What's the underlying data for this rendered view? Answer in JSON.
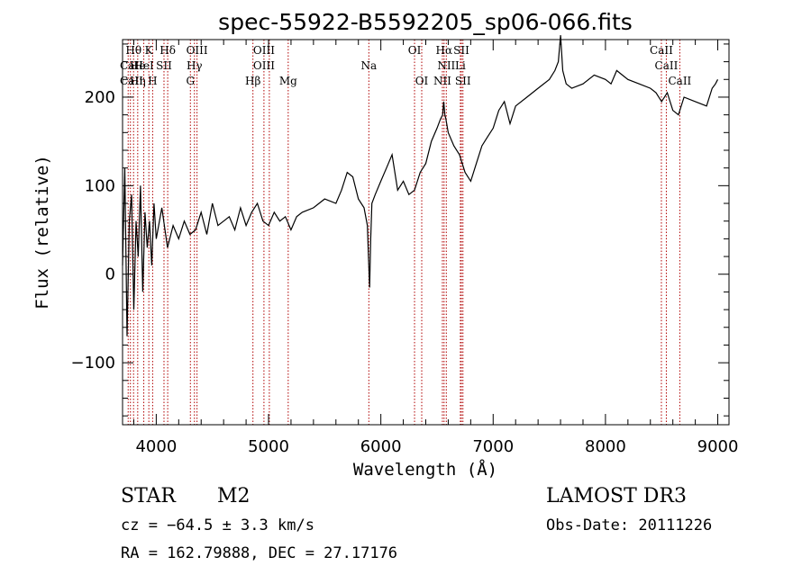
{
  "chart_data": {
    "type": "line",
    "title": "spec-55922-B5592205_sp06-066.fits",
    "xlabel": "Wavelength (Å)",
    "ylabel": "Flux (relative)",
    "xlim": [
      3700,
      9100
    ],
    "ylim": [
      -170,
      265
    ],
    "xticks": [
      4000,
      5000,
      6000,
      7000,
      8000,
      9000
    ],
    "yticks": [
      -100,
      0,
      100,
      200
    ],
    "xtick_labels": [
      "4000",
      "5000",
      "6000",
      "7000",
      "8000",
      "9000"
    ],
    "ytick_labels": [
      "−100",
      "0",
      "100",
      "200"
    ],
    "series": [
      {
        "name": "spectrum",
        "x": [
          3700,
          3720,
          3740,
          3760,
          3780,
          3800,
          3820,
          3840,
          3860,
          3880,
          3900,
          3920,
          3940,
          3960,
          3980,
          4000,
          4050,
          4100,
          4150,
          4200,
          4250,
          4300,
          4350,
          4400,
          4450,
          4500,
          4550,
          4600,
          4650,
          4700,
          4750,
          4800,
          4850,
          4900,
          4950,
          5000,
          5050,
          5100,
          5150,
          5200,
          5250,
          5300,
          5400,
          5500,
          5600,
          5650,
          5700,
          5750,
          5800,
          5850,
          5880,
          5890,
          5900,
          5910,
          5920,
          5950,
          6000,
          6050,
          6100,
          6150,
          6200,
          6250,
          6300,
          6350,
          6400,
          6450,
          6500,
          6530,
          6550,
          6560,
          6570,
          6580,
          6600,
          6650,
          6700,
          6750,
          6800,
          6850,
          6900,
          6950,
          7000,
          7050,
          7100,
          7150,
          7200,
          7300,
          7400,
          7500,
          7550,
          7580,
          7600,
          7620,
          7650,
          7700,
          7800,
          7900,
          8000,
          8050,
          8100,
          8150,
          8200,
          8300,
          8400,
          8450,
          8500,
          8550,
          8600,
          8650,
          8700,
          8800,
          8900,
          8950,
          8980,
          9000
        ],
        "y": [
          10,
          120,
          -70,
          60,
          90,
          -40,
          60,
          20,
          100,
          -20,
          70,
          30,
          60,
          10,
          80,
          40,
          75,
          30,
          55,
          40,
          60,
          45,
          50,
          70,
          45,
          80,
          55,
          60,
          65,
          50,
          75,
          55,
          70,
          80,
          60,
          55,
          70,
          60,
          65,
          50,
          65,
          70,
          75,
          85,
          80,
          95,
          115,
          110,
          85,
          75,
          55,
          20,
          -15,
          40,
          80,
          90,
          105,
          120,
          135,
          95,
          105,
          90,
          95,
          115,
          125,
          150,
          165,
          175,
          180,
          195,
          180,
          175,
          160,
          145,
          135,
          115,
          105,
          125,
          145,
          155,
          165,
          185,
          195,
          170,
          190,
          200,
          210,
          220,
          230,
          240,
          270,
          230,
          215,
          210,
          215,
          225,
          220,
          215,
          230,
          225,
          220,
          215,
          210,
          205,
          195,
          205,
          185,
          180,
          200,
          195,
          190,
          210,
          215,
          220
        ]
      }
    ],
    "lines": [
      {
        "name": "Hθ",
        "wavelength": 3798,
        "row": 1
      },
      {
        "name": "CaII",
        "wavelength": 3780,
        "row": 2
      },
      {
        "name": "CaII",
        "wavelength": 3780,
        "row": 3
      },
      {
        "name": "He",
        "wavelength": 3835,
        "row": 2
      },
      {
        "name": "Hη",
        "wavelength": 3835,
        "row": 3
      },
      {
        "name": "K",
        "wavelength": 3934,
        "row": 1
      },
      {
        "name": "HeI",
        "wavelength": 3889,
        "row": 2
      },
      {
        "name": "H",
        "wavelength": 3968,
        "row": 3
      },
      {
        "name": "SII",
        "wavelength": 4069,
        "row": 2
      },
      {
        "name": "Hδ",
        "wavelength": 4102,
        "row": 1
      },
      {
        "name": "OIII",
        "wavelength": 4363,
        "row": 1
      },
      {
        "name": "Hγ",
        "wavelength": 4340,
        "row": 2
      },
      {
        "name": "G",
        "wavelength": 4304,
        "row": 3
      },
      {
        "name": "OIII",
        "wavelength": 4959,
        "row": 1
      },
      {
        "name": "OIII",
        "wavelength": 4959,
        "row": 2
      },
      {
        "name": "Hβ",
        "wavelength": 4861,
        "row": 3
      },
      {
        "name": "Mg",
        "wavelength": 5175,
        "row": 3
      },
      {
        "name": "Na",
        "wavelength": 5893,
        "row": 2
      },
      {
        "name": "OI",
        "wavelength": 6300,
        "row": 1
      },
      {
        "name": "OI",
        "wavelength": 6364,
        "row": 3
      },
      {
        "name": "Hα",
        "wavelength": 6563,
        "row": 1
      },
      {
        "name": "SII",
        "wavelength": 6717,
        "row": 1
      },
      {
        "name": "NII",
        "wavelength": 6583,
        "row": 2
      },
      {
        "name": "Li",
        "wavelength": 6708,
        "row": 2
      },
      {
        "name": "NII",
        "wavelength": 6548,
        "row": 3
      },
      {
        "name": "SII",
        "wavelength": 6731,
        "row": 3
      },
      {
        "name": "CaII",
        "wavelength": 8498,
        "row": 1
      },
      {
        "name": "CaII",
        "wavelength": 8542,
        "row": 2
      },
      {
        "name": "CaII",
        "wavelength": 8662,
        "row": 3
      }
    ],
    "line_wavelengths": [
      3750,
      3770,
      3798,
      3835,
      3889,
      3934,
      3968,
      4069,
      4102,
      4304,
      4340,
      4363,
      4861,
      4959,
      5007,
      5175,
      5893,
      6300,
      6364,
      6548,
      6563,
      6583,
      6708,
      6717,
      6731,
      8498,
      8542,
      8662
    ],
    "line_color": "#b00000"
  },
  "info": {
    "class_label": "STAR",
    "subclass": "M2",
    "survey": "LAMOST DR3",
    "cz": "cz = −64.5 ± 3.3 km/s",
    "obs_date": "Obs-Date: 20111226",
    "coords": "RA = 162.79888, DEC =  27.17176"
  }
}
